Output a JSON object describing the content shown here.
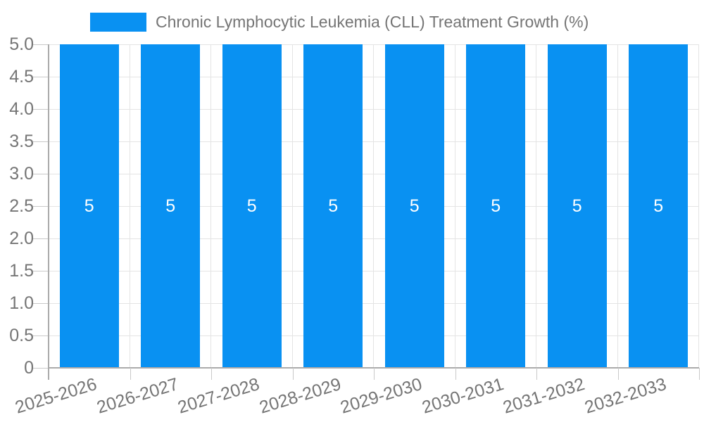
{
  "chart_data": {
    "type": "bar",
    "title": "",
    "legend_position": "top",
    "categories": [
      "2025-2026",
      "2026-2027",
      "2027-2028",
      "2028-2029",
      "2029-2030",
      "2030-2031",
      "2031-2032",
      "2032-2033"
    ],
    "series": [
      {
        "name": "Chronic Lymphocytic Leukemia (CLL) Treatment Growth (%)",
        "values": [
          5,
          5,
          5,
          5,
          5,
          5,
          5,
          5
        ],
        "bar_value_labels": [
          "5",
          "5",
          "5",
          "5",
          "5",
          "5",
          "5",
          "5"
        ]
      }
    ],
    "xlabel": "",
    "ylabel": "",
    "ylim": [
      0,
      5
    ],
    "ytick_labels_top_down": [
      "5.0",
      "4.5",
      "4.0",
      "3.5",
      "3.0",
      "2.5",
      "2.0",
      "1.5",
      "1.0",
      "0.5",
      "0"
    ],
    "grid": true,
    "x_label_rotation_deg": -17,
    "colors": {
      "bar": "#0991f2",
      "tick_text": "#757575",
      "legend_text": "#757575",
      "bar_value_text": "#ffffff",
      "gridline": "#e4e4e4",
      "axis_line": "#ababab",
      "tick_mark": "#c9c9c9",
      "background": "#ffffff"
    }
  }
}
